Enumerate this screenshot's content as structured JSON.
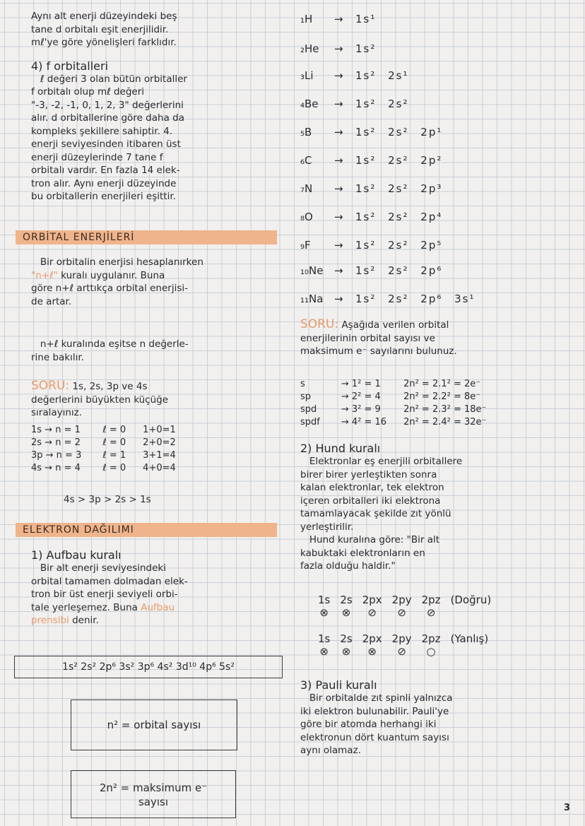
{
  "left": {
    "intro": "Aynı alt enerji düzeyindeki beş\ntane d orbitalı eşit enerjilidir.\nmℓ'ye göre yönelişleri farklıdır.",
    "f_title": "4) f orbitalleri",
    "f_text": "   ℓ değeri 3 olan bütün orbitaller\nf orbitalı olup mℓ değeri\n\"-3, -2, -1, 0, 1, 2, 3\" değerlerini\nalır. d orbitallerine göre daha da\nkompleks şekillere sahiptir. 4.\nenerji seviyesinden itibaren üst\nenerji düzeylerinde 7 tane f\norbitalı vardır. En fazla 14 elek-\ntron alır. Aynı enerji düzeyinde\nbu orbitallerin enerjileri eşittir.",
    "section1": "ORBİTAL ENERJİLERİ",
    "energy_text_1": "   Bir orbitalin enerjisi hesaplanırken",
    "energy_rule": "\"n+ℓ\"",
    "energy_text_2": " kuralı uygulanır. Buna\ngöre n+ℓ arttıkça orbital enerjisi-\nde artar.",
    "equal_text": "   n+ℓ kuralında eşitse n değerle-\nrine bakılır.",
    "soru_label": "SORU:",
    "soru_text": " 1s, 2s, 3p ve 4s\ndeğerlerini büyükten küçüğe\nsıralayınız.",
    "soru_rows": [
      [
        "1s → n = 1",
        "ℓ = 0",
        "1+0=1"
      ],
      [
        "2s → n = 2",
        "ℓ = 0",
        "2+0=2"
      ],
      [
        "3p → n = 3",
        "ℓ = 1",
        "3+1=4"
      ],
      [
        "4s → n = 4",
        "ℓ = 0",
        "4+0=4"
      ]
    ],
    "order": "4s > 3p > 2s > 1s",
    "section2": "ELEKTRON DAĞILIMI",
    "aufbau_title": "1) Aufbau kuralı",
    "aufbau_text": "   Bir alt enerji seviyesindeki\norbital tamamen dolmadan elek-\ntron bir üst enerji seviyeli orbi-\ntale yerleşemez. Buna ",
    "aufbau_name": "Aufbau\nprensibi",
    "aufbau_end": " denir.",
    "sequence": "1s² 2s² 2p⁶ 3s² 3p⁶ 4s² 3d¹⁰ 4p⁶ 5s²",
    "box1": "n² = orbital sayısı",
    "box2": "2n² = maksimum e⁻\nsayısı"
  },
  "right": {
    "configs": [
      [
        "₁H",
        "1s¹"
      ],
      [
        "₂He",
        "1s²"
      ],
      [
        "₃Li",
        "1s² 2s¹"
      ],
      [
        "₄Be",
        "1s² 2s²"
      ],
      [
        "₅B",
        "1s² 2s² 2p¹"
      ],
      [
        "₆C",
        "1s² 2s² 2p²"
      ],
      [
        "₇N",
        "1s² 2s² 2p³"
      ],
      [
        "₈O",
        "1s² 2s² 2p⁴"
      ],
      [
        "₉F",
        "1s² 2s² 2p⁵"
      ],
      [
        "₁₀Ne",
        "1s² 2s² 2p⁶"
      ],
      [
        "₁₁Na",
        "1s² 2s² 2p⁶ 3s¹"
      ]
    ],
    "arrow": "→",
    "soru_label": "SORU:",
    "soru_text": " Aşağıda verilen orbital\nenerjilerinin orbital sayısı ve\nmaksimum e⁻ sayılarını bulunuz.",
    "soru_rows": [
      [
        "s",
        "→ 1² = 1",
        "2n² = 2.1² = 2e⁻"
      ],
      [
        "sp",
        "→ 2² = 4",
        "2n² = 2.2² = 8e⁻"
      ],
      [
        "spd",
        "→ 3² = 9",
        "2n² = 2.3² = 18e⁻"
      ],
      [
        "spdf",
        "→ 4² = 16",
        "2n² = 2.4² = 32e⁻"
      ]
    ],
    "hund_title": "2) Hund kuralı",
    "hund_text": "   Elektronlar eş enerjili orbitallere\nbirer birer yerleştikten sonra\nkalan elektronlar, tek elektron\niçeren orbitalleri iki elektrona\ntamamlayacak şekilde zıt yönlü\nyerleştirilir.\n   Hund kuralına göre: \"Bir alt\nkabuktaki elektronların en\nfazla olduğu haldir.\"",
    "diagram1": {
      "labels": [
        "1s",
        "2s",
        "2px",
        "2py",
        "2pz"
      ],
      "marks": [
        "⊗",
        "⊗",
        "⊘",
        "⊘",
        "⊘"
      ],
      "verdict": "(Doğru)"
    },
    "diagram2": {
      "labels": [
        "1s",
        "2s",
        "2px",
        "2py",
        "2pz"
      ],
      "marks": [
        "⊗",
        "⊗",
        "⊗",
        "⊘",
        "○"
      ],
      "verdict": "(Yanlış)"
    },
    "pauli_title": "3) Pauli kuralı",
    "pauli_text": "   Bir orbitalde zıt spinli yalnızca\niki elektron bulunabilir. Pauli'ye\ngöre bir atomda herhangi iki\nelektronun dört kuantum sayısı\naynı olamaz."
  },
  "page_number": "3",
  "colors": {
    "highlight": "#f0b48c",
    "accent_text": "#e89a6a",
    "ink": "#2a2a2e",
    "grid": "#c9cfd8"
  }
}
